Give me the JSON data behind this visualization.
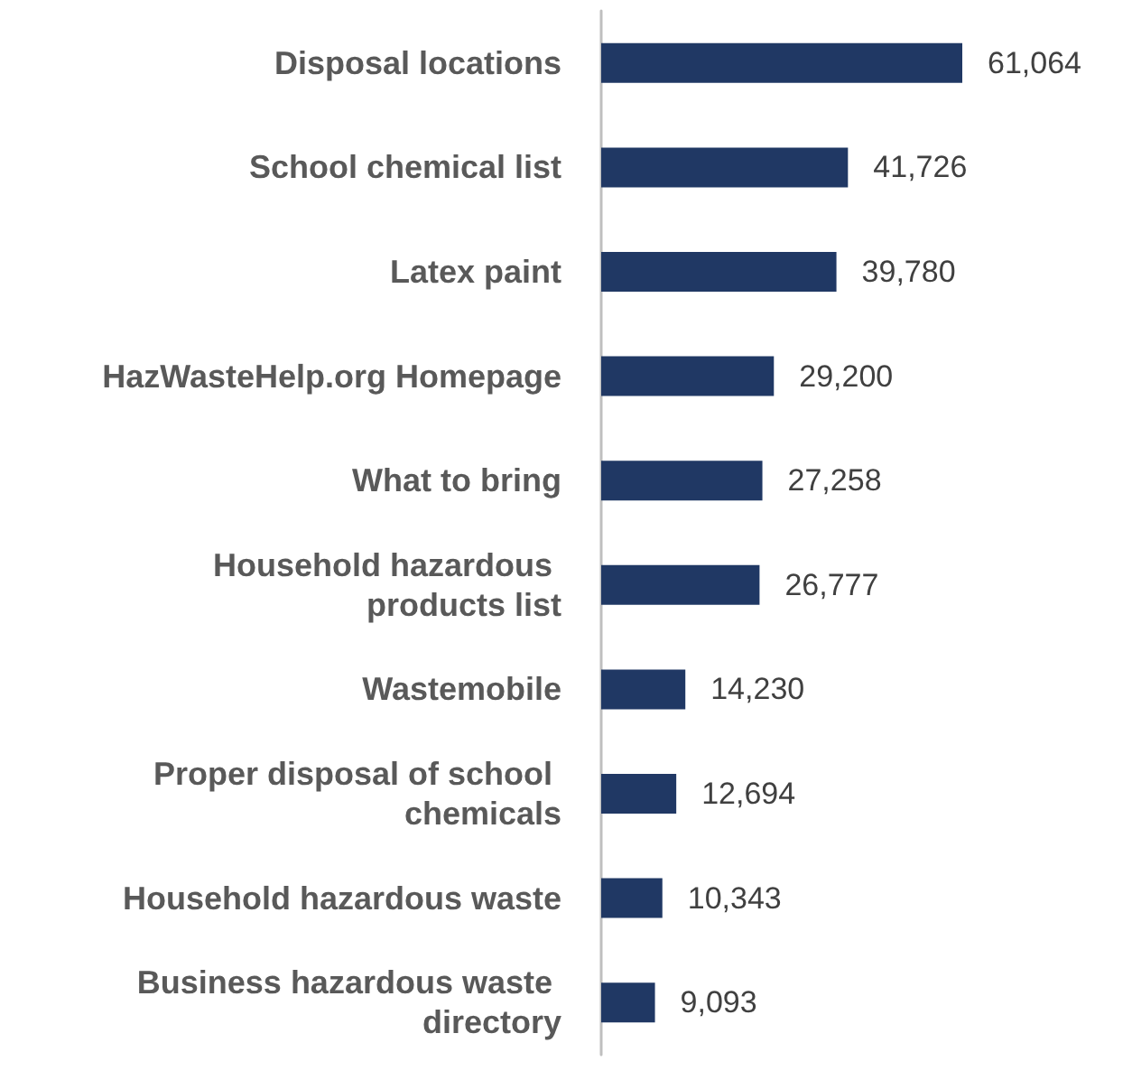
{
  "chart_data": {
    "type": "bar",
    "orientation": "horizontal",
    "data_labels": true,
    "categories": [
      "Disposal locations",
      "School chemical list",
      "Latex paint",
      "HazWasteHelp.org Homepage",
      "What to bring",
      "Household hazardous products list",
      "Wastemobile",
      "Proper disposal of school chemicals",
      "Household hazardous waste",
      "Business hazardous waste directory"
    ],
    "series": [
      {
        "color": "#203864",
        "values": [
          61064,
          41726,
          39780,
          29200,
          27258,
          26777,
          14230,
          12694,
          10343,
          9093
        ],
        "value_labels": [
          "61,064",
          "41,726",
          "39,780",
          "29,200",
          "27,258",
          "26,777",
          "14,230",
          "12,694",
          "10,343",
          "9,093"
        ]
      }
    ]
  }
}
